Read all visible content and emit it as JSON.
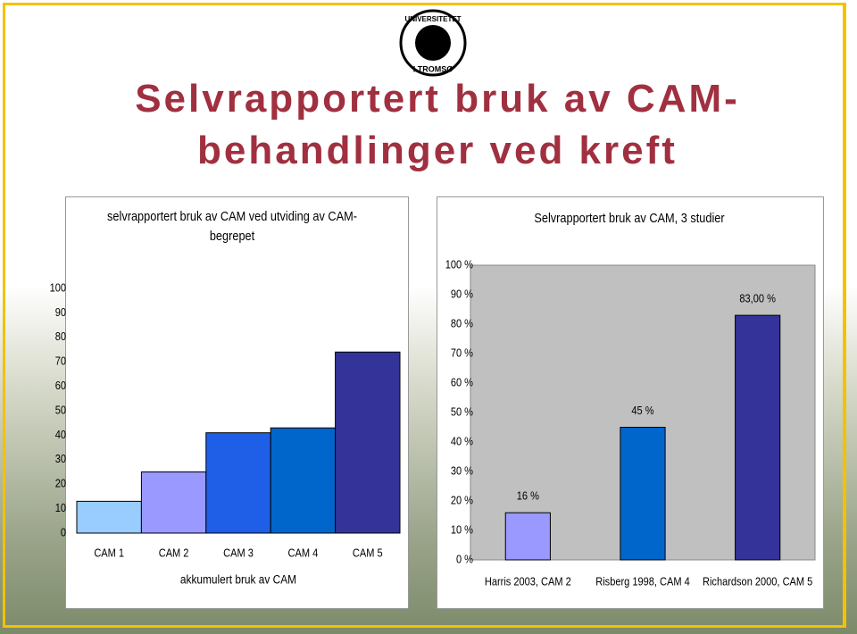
{
  "logo": {
    "top": "UNIVERSITETET",
    "bottom": "I TROMSØ"
  },
  "slide_title": "Selvrapportert bruk av CAM-behandlinger ved kreft",
  "chart_data": [
    {
      "type": "bar",
      "title": "selvrapportert bruk av CAM ved utviding av CAM-begrepet",
      "x_label": "akkumulert bruk av CAM",
      "categories": [
        "CAM 1",
        "CAM 2",
        "CAM 3",
        "CAM 4",
        "CAM 5"
      ],
      "values": [
        13,
        25,
        41,
        43,
        74
      ],
      "colors": [
        "#99ccff",
        "#9999ff",
        "#1f5fe8",
        "#0066cc",
        "#333399"
      ],
      "ylim": [
        0,
        100
      ],
      "yticks": [
        0,
        10,
        20,
        30,
        40,
        50,
        60,
        70,
        80,
        90,
        100
      ],
      "grid": false
    },
    {
      "type": "bar",
      "title": "Selvrapportert bruk av CAM, 3 studier",
      "categories": [
        "Harris 2003, CAM 2",
        "Risberg 1998, CAM 4",
        "Richardson 2000, CAM 5"
      ],
      "values": [
        16,
        45,
        83
      ],
      "value_labels": [
        "16 %",
        "45 %",
        "83,00 %"
      ],
      "colors": [
        "#9999ff",
        "#0066cc",
        "#333399"
      ],
      "ylim": [
        0,
        100
      ],
      "yticks": [
        {
          "value": 0,
          "label": "0 %"
        },
        {
          "value": 10,
          "label": "10 %"
        },
        {
          "value": 20,
          "label": "20 %"
        },
        {
          "value": 30,
          "label": "30 %"
        },
        {
          "value": 40,
          "label": "40 %"
        },
        {
          "value": 50,
          "label": "50 %"
        },
        {
          "value": 60,
          "label": "60 %"
        },
        {
          "value": 70,
          "label": "70 %"
        },
        {
          "value": 80,
          "label": "80 %"
        },
        {
          "value": 90,
          "label": "90 %"
        },
        {
          "value": 100,
          "label": "100 %"
        }
      ],
      "grid": false
    }
  ]
}
